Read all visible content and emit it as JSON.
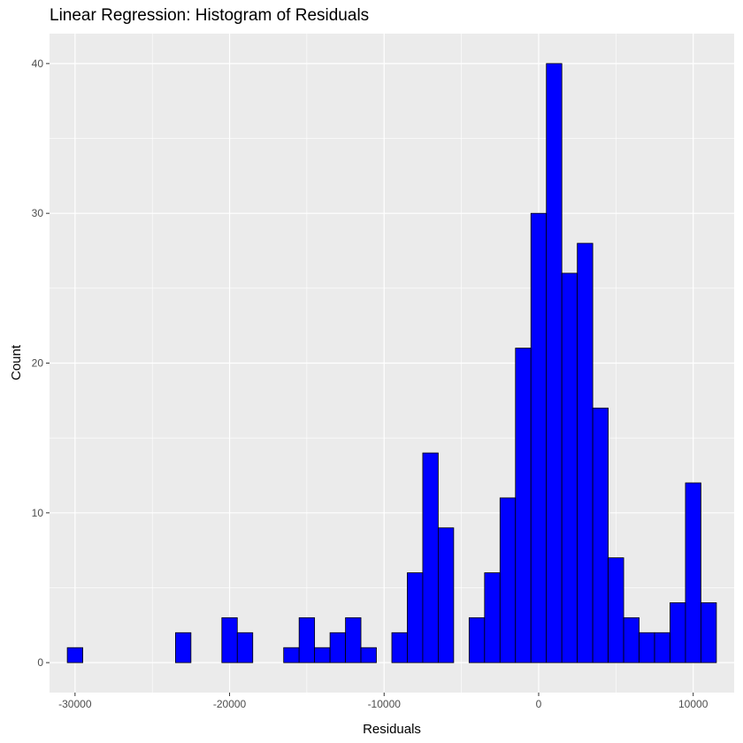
{
  "chart_data": {
    "type": "bar",
    "subtype": "histogram",
    "title": "Linear Regression: Histogram of Residuals",
    "xlabel": "Residuals",
    "ylabel": "Count",
    "bin_width": 1000,
    "bin_centers": [
      -30000,
      -29000,
      -28000,
      -27000,
      -26000,
      -25000,
      -24000,
      -23000,
      -22000,
      -21000,
      -20000,
      -19000,
      -18000,
      -17000,
      -16000,
      -15000,
      -14000,
      -13000,
      -12000,
      -11000,
      -10000,
      -9000,
      -8000,
      -7000,
      -6000,
      -5000,
      -4000,
      -3000,
      -2000,
      -1000,
      0,
      1000,
      2000,
      3000,
      4000,
      5000,
      6000,
      7000,
      8000,
      9000,
      10000,
      11000
    ],
    "values": [
      1,
      0,
      0,
      0,
      0,
      0,
      0,
      2,
      0,
      0,
      3,
      2,
      0,
      0,
      1,
      3,
      1,
      2,
      3,
      1,
      0,
      2,
      6,
      14,
      9,
      0,
      3,
      6,
      11,
      21,
      30,
      40,
      26,
      28,
      17,
      7,
      3,
      2,
      2,
      4,
      12,
      4
    ],
    "xlim": [
      -31650,
      12650
    ],
    "ylim": [
      -2,
      42
    ],
    "x_ticks": [
      -30000,
      -20000,
      -10000,
      0,
      10000
    ],
    "y_ticks": [
      0,
      10,
      20,
      30,
      40
    ],
    "grid": true,
    "legend": "none",
    "colors": {
      "bar_fill": "#0000ff",
      "bar_outline": "#000000",
      "panel_bg": "#ebebeb",
      "grid_major": "#ffffff",
      "tick_label": "#4d4d4d"
    }
  }
}
